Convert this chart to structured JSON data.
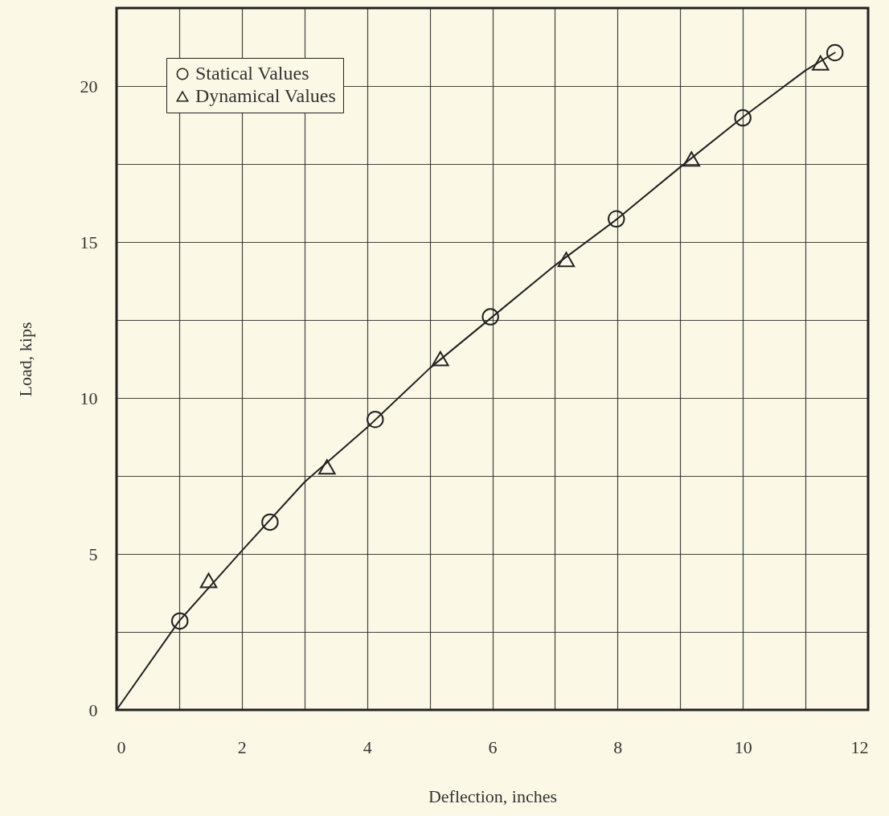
{
  "chart_data": {
    "type": "scatter",
    "xlabel": "Deflection, inches",
    "ylabel": "Load, kips",
    "xlim": [
      0,
      12
    ],
    "ylim": [
      0,
      22.5
    ],
    "xticks": [
      0,
      {
        "value": 1,
        "label": null
      },
      2,
      {
        "value": 3,
        "label": null
      },
      4,
      {
        "value": 5,
        "label": null
      },
      6,
      {
        "value": 7,
        "label": null
      },
      8,
      {
        "value": 9,
        "label": null
      },
      10,
      {
        "value": 11,
        "label": null
      },
      12
    ],
    "yticks": [
      0,
      {
        "value": 2.5,
        "label": null
      },
      5,
      {
        "value": 7.5,
        "label": null
      },
      10,
      {
        "value": 12.5,
        "label": null
      },
      15,
      {
        "value": 17.5,
        "label": null
      },
      20
    ],
    "grid": true,
    "legend": "top left",
    "series": [
      {
        "name": "Statical Values",
        "type": "scatter",
        "marker": "circle",
        "color": "#222222",
        "x": [
          1.01,
          2.45,
          4.13,
          5.97,
          7.98,
          10.0,
          11.47
        ],
        "values": [
          2.85,
          6.02,
          9.31,
          12.6,
          15.74,
          18.98,
          21.07
        ]
      },
      {
        "name": "Dynamical Values",
        "type": "scatter",
        "marker": "triangle",
        "color": "#222222",
        "x": [
          1.47,
          3.36,
          5.17,
          7.18,
          9.18,
          11.24
        ],
        "values": [
          4.15,
          7.79,
          11.26,
          14.44,
          17.66,
          20.74
        ]
      },
      {
        "type": "line",
        "marker": "none",
        "color": "#222222",
        "x": [
          0,
          1,
          2,
          3,
          4,
          5,
          6,
          7,
          8,
          9,
          10,
          11,
          11.47
        ],
        "values": [
          0,
          2.85,
          5.1,
          7.3,
          9.05,
          10.95,
          12.6,
          14.25,
          15.75,
          17.4,
          19.0,
          20.5,
          21.07
        ]
      }
    ]
  }
}
